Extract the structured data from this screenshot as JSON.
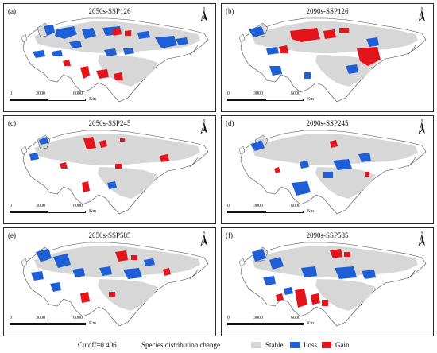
{
  "panels": [
    {
      "label": "(a)",
      "title": "2050s-SSP126"
    },
    {
      "label": "(b)",
      "title": "2090s-SSP126"
    },
    {
      "label": "(c)",
      "title": "2050s-SSP245"
    },
    {
      "label": "(d)",
      "title": "2090s-SSP245"
    },
    {
      "label": "(e)",
      "title": "2050s-SSP585"
    },
    {
      "label": "(f)",
      "title": "2090s-SSP585"
    }
  ],
  "north_label": "N",
  "scale": {
    "ticks": [
      "0",
      "3000",
      "6000"
    ],
    "unit": "Km"
  },
  "legend": {
    "cutoff": "Cutoff=0.406",
    "title": "Species distribution change",
    "items": [
      {
        "label": "Stable",
        "color": "#d7d7d7"
      },
      {
        "label": "Loss",
        "color": "#1f5fd6"
      },
      {
        "label": "Gain",
        "color": "#e3141b"
      }
    ]
  },
  "colors": {
    "stable": "#d7d7d7",
    "loss": "#1f5fd6",
    "gain": "#e3141b",
    "outline": "#4a4a4a"
  }
}
